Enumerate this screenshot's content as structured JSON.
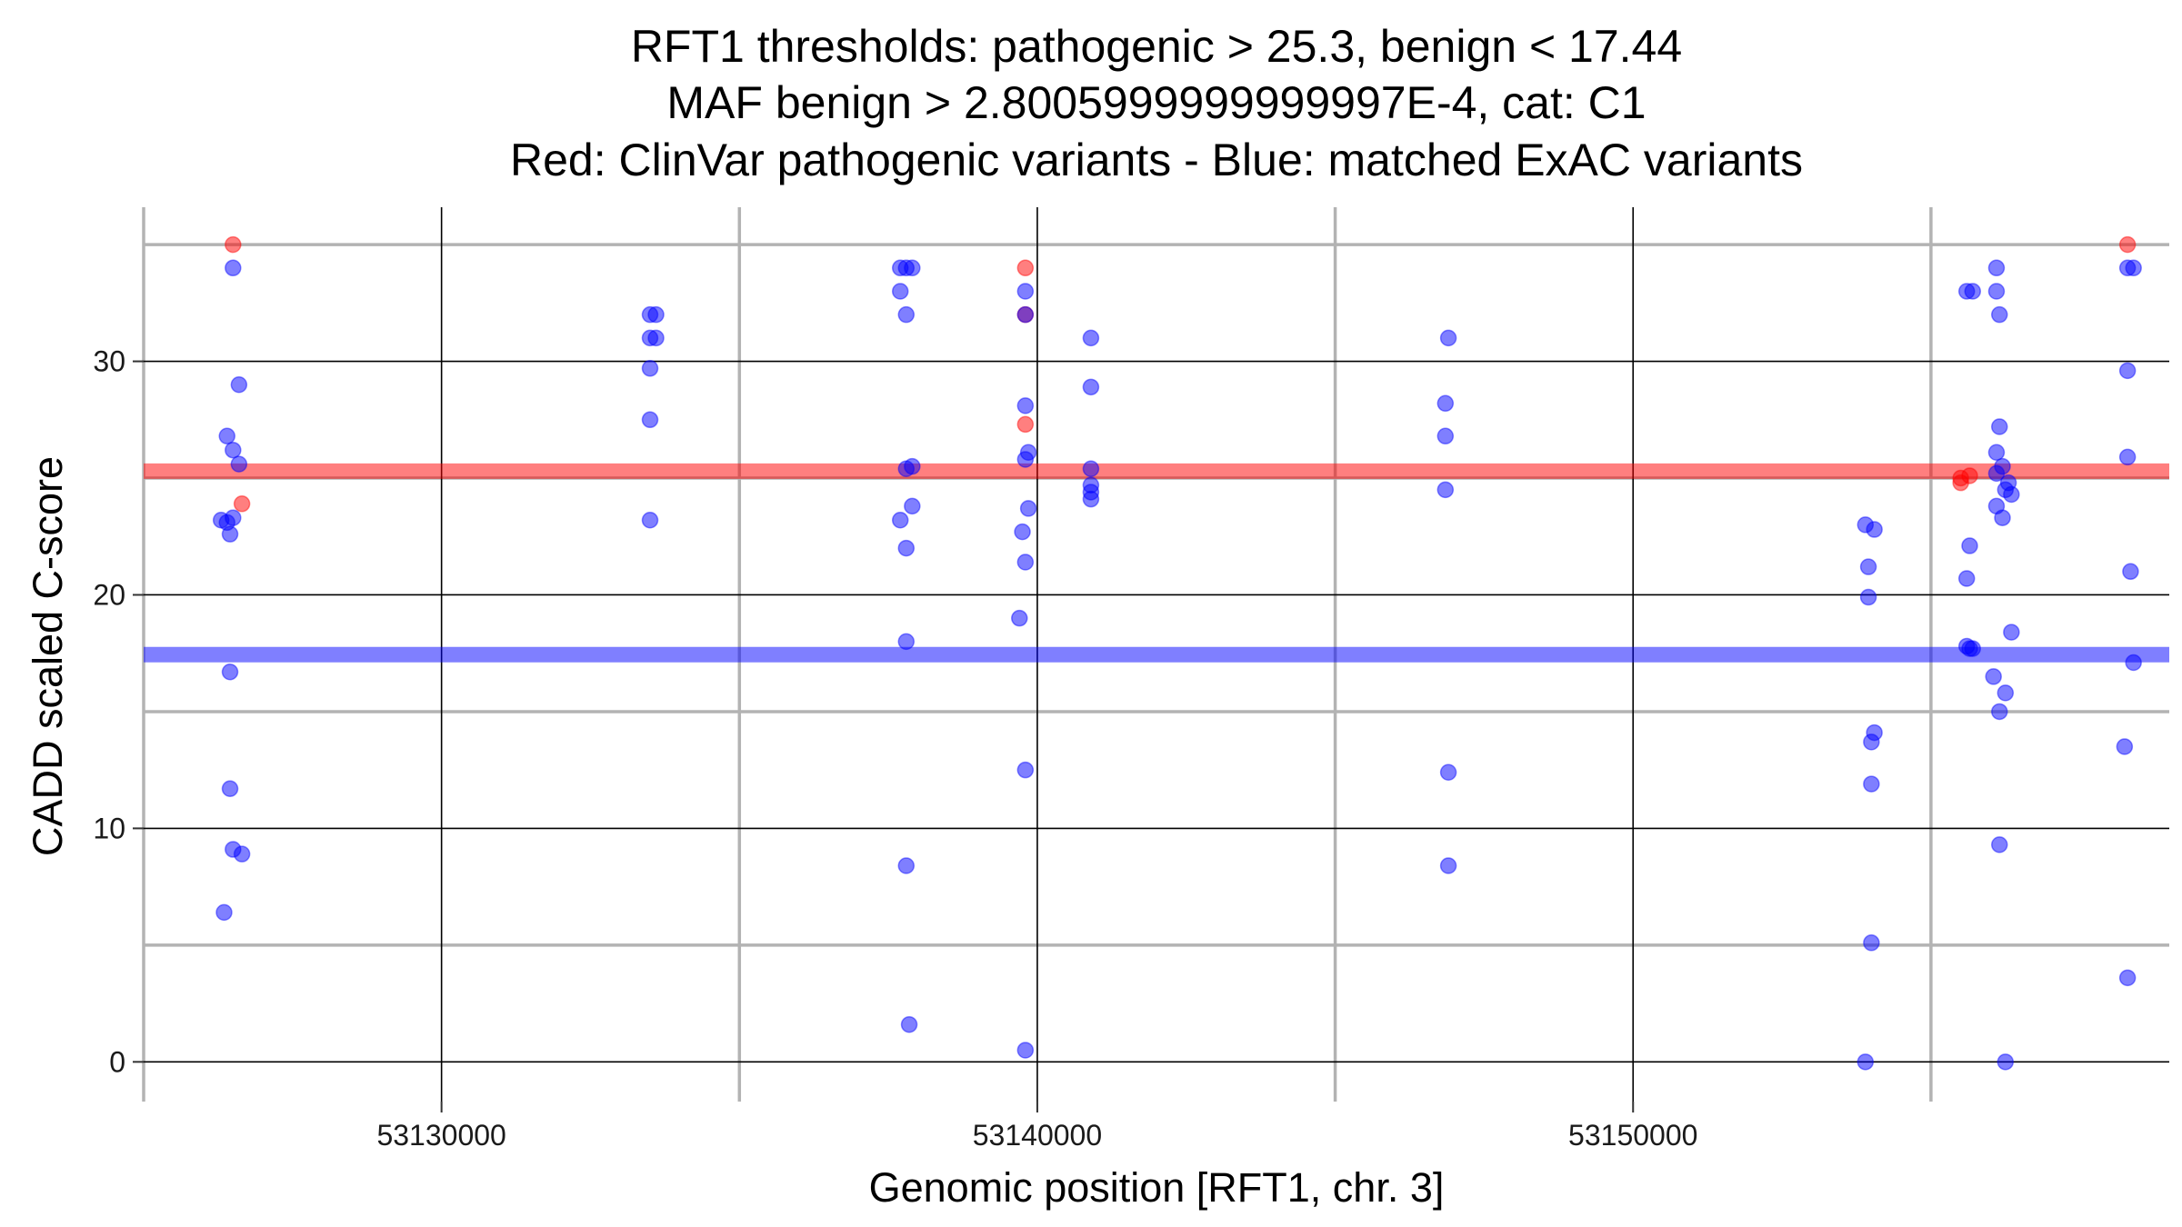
{
  "chart_data": {
    "type": "scatter",
    "title_lines": [
      "RFT1 thresholds: pathogenic > 25.3, benign < 17.44",
      "MAF benign > 2.8005999999999997E-4, cat: C1",
      "Red: ClinVar pathogenic variants - Blue: matched ExAC variants"
    ],
    "xlabel": "Genomic position [RFT1, chr. 3]",
    "ylabel": "CADD scaled C-score",
    "xlim": [
      53125000,
      53159000
    ],
    "ylim": [
      -1.7,
      36.6
    ],
    "x_ticks": [
      53130000,
      53140000,
      53150000
    ],
    "x_tick_labels": [
      "53130000",
      "53140000",
      "53150000"
    ],
    "x_minor_gridlines": [
      53125000,
      53135000,
      53145000,
      53155000
    ],
    "y_ticks": [
      0,
      10,
      20,
      30
    ],
    "y_tick_labels": [
      "0",
      "10",
      "20",
      "30"
    ],
    "y_minor_gridlines": [
      5,
      15,
      25,
      35
    ],
    "grid": true,
    "thresholds": [
      {
        "value": 25.3,
        "color": "#ff0000",
        "label": "pathogenic"
      },
      {
        "value": 17.44,
        "color": "#0000ff",
        "label": "benign"
      }
    ],
    "series": [
      {
        "color": "#ff0000",
        "points": [
          [
            53126500,
            35
          ],
          [
            53126650,
            23.9
          ],
          [
            53139800,
            34
          ],
          [
            53139800,
            32
          ],
          [
            53139800,
            27.3
          ],
          [
            53155500,
            24.8
          ],
          [
            53155500,
            25
          ],
          [
            53155650,
            25.1
          ],
          [
            53158300,
            35
          ]
        ]
      },
      {
        "color": "#0000ff",
        "points": [
          [
            53126500,
            34
          ],
          [
            53126600,
            29
          ],
          [
            53126400,
            26.8
          ],
          [
            53126500,
            26.2
          ],
          [
            53126600,
            25.6
          ],
          [
            53126300,
            23.2
          ],
          [
            53126400,
            23.1
          ],
          [
            53126500,
            23.3
          ],
          [
            53126450,
            22.6
          ],
          [
            53126450,
            16.7
          ],
          [
            53126450,
            11.7
          ],
          [
            53126500,
            9.1
          ],
          [
            53126650,
            8.9
          ],
          [
            53126350,
            6.4
          ],
          [
            53133500,
            32
          ],
          [
            53133600,
            32
          ],
          [
            53133500,
            31
          ],
          [
            53133600,
            31
          ],
          [
            53133500,
            29.7
          ],
          [
            53133500,
            27.5
          ],
          [
            53133500,
            23.2
          ],
          [
            53137700,
            34
          ],
          [
            53137900,
            34
          ],
          [
            53137800,
            34
          ],
          [
            53137700,
            33
          ],
          [
            53137800,
            32
          ],
          [
            53137800,
            25.4
          ],
          [
            53137900,
            25.5
          ],
          [
            53137900,
            23.8
          ],
          [
            53137700,
            23.2
          ],
          [
            53137800,
            22
          ],
          [
            53137800,
            18
          ],
          [
            53137800,
            8.4
          ],
          [
            53137850,
            1.6
          ],
          [
            53139800,
            33
          ],
          [
            53139800,
            32
          ],
          [
            53139800,
            28.1
          ],
          [
            53139850,
            26.1
          ],
          [
            53139800,
            25.8
          ],
          [
            53139850,
            23.7
          ],
          [
            53139750,
            22.7
          ],
          [
            53139800,
            21.4
          ],
          [
            53139700,
            19
          ],
          [
            53139800,
            12.5
          ],
          [
            53139800,
            0.5
          ],
          [
            53140900,
            31
          ],
          [
            53140900,
            28.9
          ],
          [
            53140900,
            25.4
          ],
          [
            53140900,
            24.7
          ],
          [
            53140900,
            24.4
          ],
          [
            53140900,
            24.1
          ],
          [
            53146900,
            31
          ],
          [
            53146850,
            28.2
          ],
          [
            53146850,
            26.8
          ],
          [
            53146850,
            24.5
          ],
          [
            53146900,
            12.4
          ],
          [
            53146900,
            8.4
          ],
          [
            53153900,
            23
          ],
          [
            53154050,
            22.8
          ],
          [
            53153950,
            21.2
          ],
          [
            53153950,
            19.9
          ],
          [
            53154050,
            14.1
          ],
          [
            53154000,
            13.7
          ],
          [
            53154000,
            11.9
          ],
          [
            53154000,
            5.1
          ],
          [
            53153900,
            0
          ],
          [
            53155600,
            33
          ],
          [
            53155700,
            33
          ],
          [
            53155650,
            22.1
          ],
          [
            53155600,
            20.7
          ],
          [
            53155650,
            17.7
          ],
          [
            53155700,
            17.7
          ],
          [
            53155600,
            17.8
          ],
          [
            53156100,
            34
          ],
          [
            53156100,
            33
          ],
          [
            53156150,
            32
          ],
          [
            53156150,
            27.2
          ],
          [
            53156100,
            26.1
          ],
          [
            53156200,
            25.5
          ],
          [
            53156100,
            25.2
          ],
          [
            53156300,
            24.8
          ],
          [
            53156250,
            24.5
          ],
          [
            53156350,
            24.3
          ],
          [
            53156100,
            23.8
          ],
          [
            53156200,
            23.3
          ],
          [
            53156350,
            18.4
          ],
          [
            53156050,
            16.5
          ],
          [
            53156250,
            15.8
          ],
          [
            53156150,
            15
          ],
          [
            53156150,
            9.3
          ],
          [
            53156250,
            0
          ],
          [
            53158300,
            34
          ],
          [
            53158400,
            34
          ],
          [
            53158300,
            29.6
          ],
          [
            53158300,
            25.9
          ],
          [
            53158350,
            21
          ],
          [
            53158400,
            17.1
          ],
          [
            53158250,
            13.5
          ],
          [
            53158300,
            3.6
          ]
        ]
      }
    ]
  }
}
